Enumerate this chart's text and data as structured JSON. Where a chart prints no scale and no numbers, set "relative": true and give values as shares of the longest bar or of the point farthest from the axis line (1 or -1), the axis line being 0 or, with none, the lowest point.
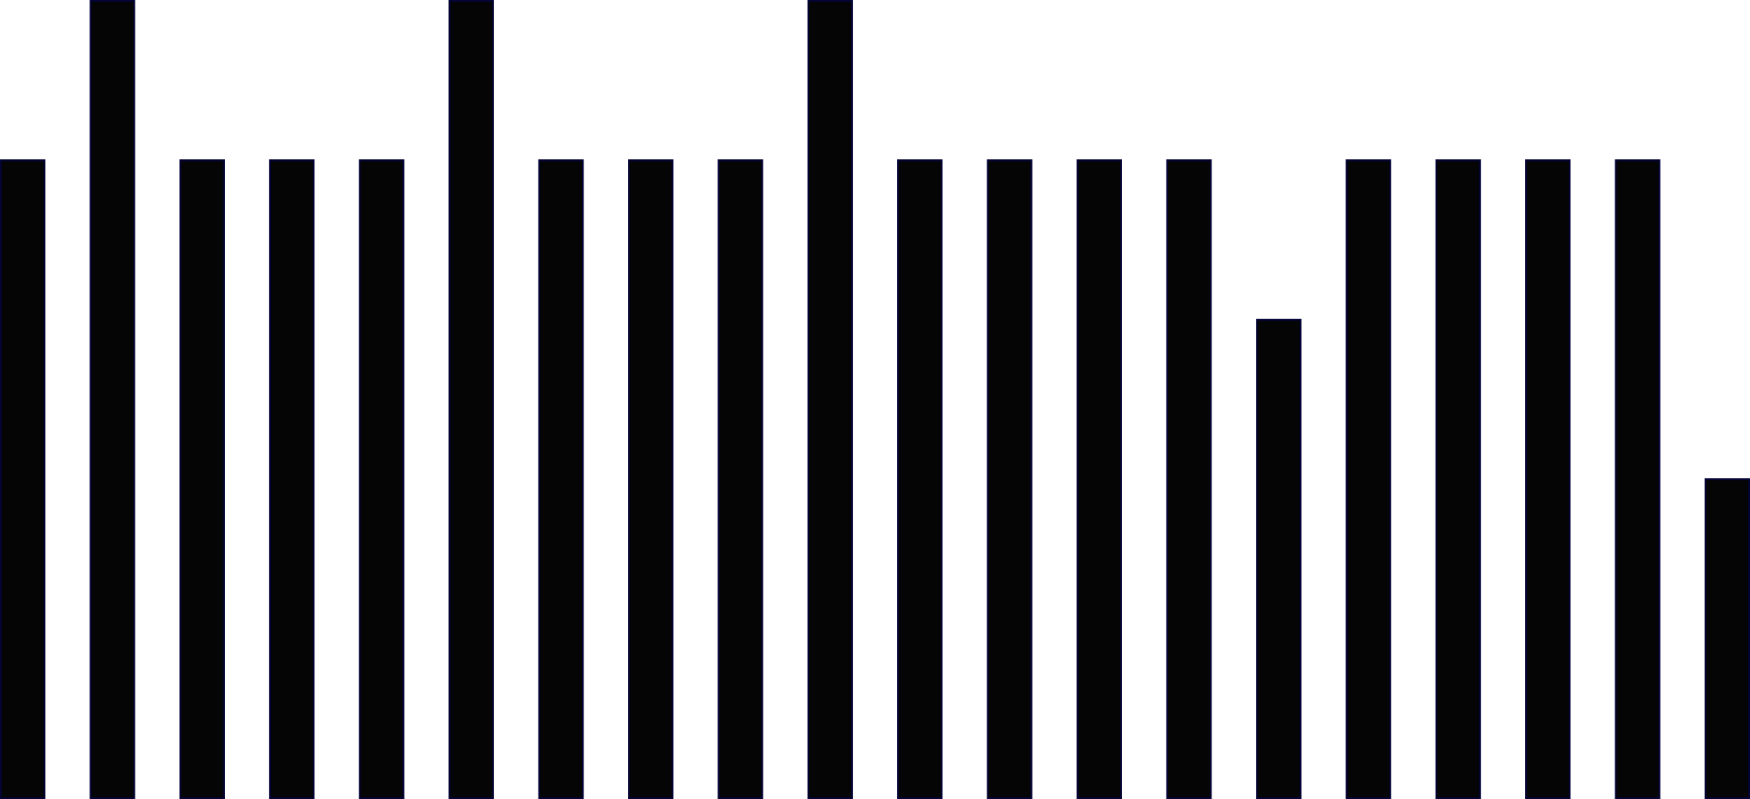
{
  "chart_data": {
    "type": "bar",
    "relative": true,
    "color": "#050505",
    "categories": [
      null,
      null,
      null,
      null,
      null,
      null,
      null,
      null,
      null,
      null,
      null,
      null,
      null,
      null,
      null,
      null,
      null,
      null,
      null,
      null
    ],
    "values": [
      0.8,
      1,
      0.8,
      0.8,
      0.8,
      1,
      0.8,
      0.8,
      0.8,
      1,
      0.8,
      0.8,
      0.8,
      0.8,
      0.6,
      0.8,
      0.8,
      0.8,
      0.8,
      0.4
    ]
  }
}
